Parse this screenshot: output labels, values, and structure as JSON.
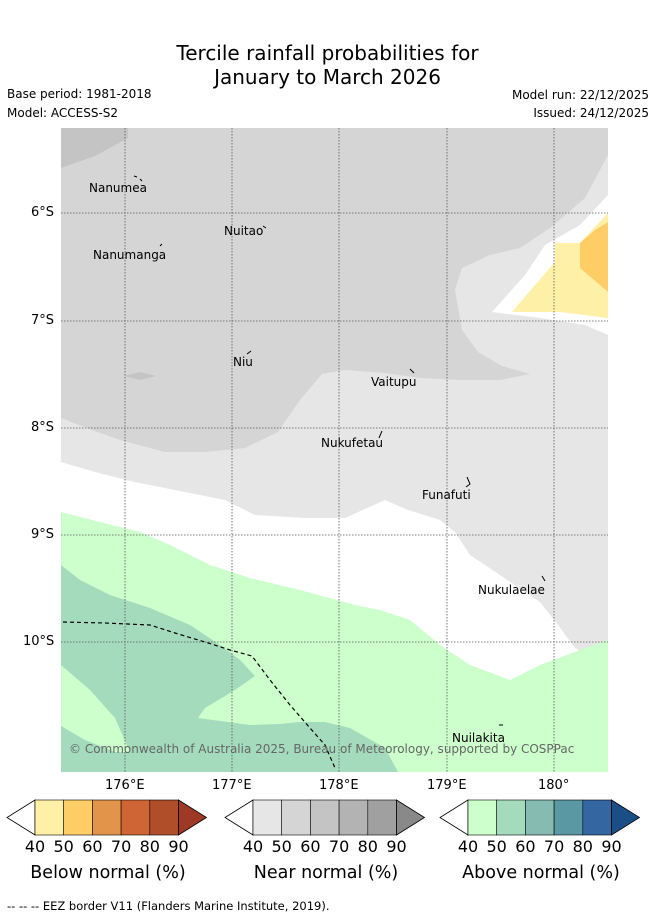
{
  "title": {
    "line1": "Tercile rainfall probabilities for",
    "line2": "January to March 2026"
  },
  "meta": {
    "base_period": "Base period: 1981-2018",
    "model": "Model: ACCESS-S2",
    "model_run": "Model run: 22/12/2025",
    "issued": "Issued: 24/12/2025"
  },
  "map": {
    "lat_labels": [
      "6°S",
      "7°S",
      "8°S",
      "9°S",
      "10°S"
    ],
    "lon_labels": [
      "176°E",
      "177°E",
      "178°E",
      "179°E",
      "180°"
    ],
    "places": [
      "Nanumea",
      "Nuitao",
      "Nanumanga",
      "Niu",
      "Vaitupu",
      "Nukufetau",
      "Funafuti",
      "Nukulaelae",
      "Nuilakita"
    ],
    "copyright": "© Commonwealth of Australia 2025, Bureau of Meteorology, supported by COSPPac"
  },
  "legend": {
    "ticks": [
      "40",
      "50",
      "60",
      "70",
      "80",
      "90"
    ],
    "below": {
      "title": "Below normal (%)",
      "colors": [
        "#ffffff",
        "#fff0a8",
        "#ffcd66",
        "#e2944a",
        "#cf6434",
        "#b04e2a",
        "#9e3926"
      ]
    },
    "near": {
      "title": "Near normal (%)",
      "colors": [
        "#ffffff",
        "#e6e6e6",
        "#d5d5d5",
        "#c4c4c4",
        "#b3b3b3",
        "#a0a0a0",
        "#898989"
      ]
    },
    "above": {
      "title": "Above normal (%)",
      "colors": [
        "#ffffff",
        "#ccffcc",
        "#a5dbbd",
        "#86bbb2",
        "#5a98a4",
        "#3467a1",
        "#1a4e86"
      ]
    }
  },
  "footer": "--  --  -- EEZ border V11 (Flanders Marine Institute, 2019)."
}
